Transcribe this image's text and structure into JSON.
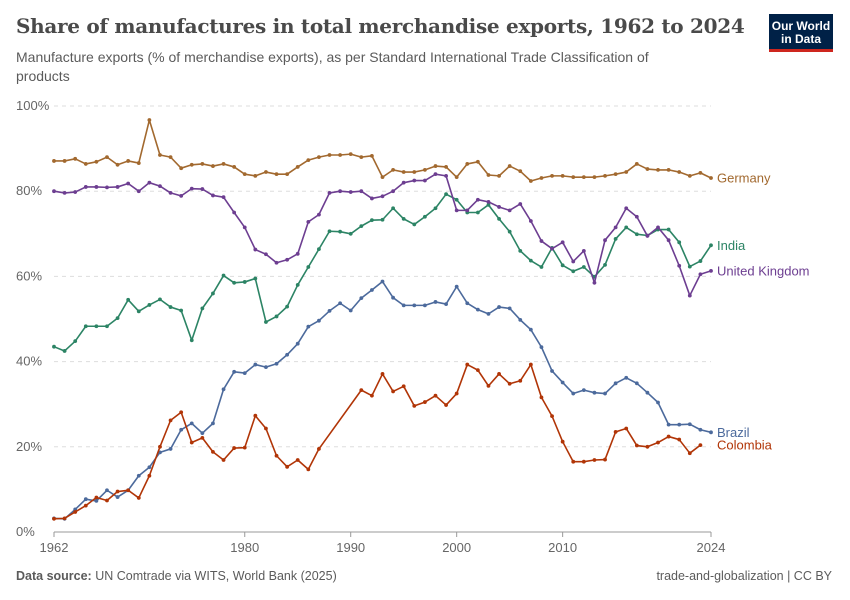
{
  "header": {
    "title": "Share of manufactures in total merchandise exports, 1962 to 2024",
    "subtitle": "Manufacture exports (% of merchandise exports), as per Standard International Trade Classification of products",
    "logo_line1": "Our World",
    "logo_line2": "in Data"
  },
  "footer": {
    "source_label": "Data source:",
    "source": "UN Comtrade via WITS, World Bank (2025)",
    "right": "trade-and-globalization | CC BY"
  },
  "chart_data": {
    "type": "line",
    "title": "Share of manufactures in total merchandise exports, 1962 to 2024",
    "xlim": [
      1962,
      2024
    ],
    "ylim": [
      0,
      100
    ],
    "x_ticks": [
      "1962",
      "1980",
      "1990",
      "2000",
      "2010",
      "2024"
    ],
    "y_ticks": [
      "0%",
      "20%",
      "40%",
      "60%",
      "80%",
      "100%"
    ],
    "grid": "horizontal dashed",
    "legend": "inline labels at right end",
    "x_start": 1962,
    "series": [
      {
        "name": "Germany",
        "color": "#a2692f",
        "values": [
          87.1,
          87.1,
          87.6,
          86.4,
          86.9,
          88,
          86.2,
          87.1,
          86.6,
          96.7,
          88.5,
          88,
          85.4,
          86.2,
          86.4,
          85.9,
          86.4,
          85.7,
          84,
          83.6,
          84.5,
          84,
          84,
          85.7,
          87.3,
          88,
          88.5,
          88.5,
          88.7,
          88,
          88.3,
          83.3,
          85,
          84.5,
          84.5,
          85,
          85.9,
          85.7,
          83.3,
          86.4,
          86.9,
          83.8,
          83.6,
          85.9,
          84.7,
          82.4,
          83.1,
          83.6,
          83.6,
          83.3,
          83.3,
          83.3,
          83.6,
          84,
          84.5,
          86.4,
          85.2,
          85,
          85,
          84.5,
          83.6,
          84.3,
          83.1
        ]
      },
      {
        "name": "India",
        "color": "#2c8465",
        "values": [
          43.5,
          42.5,
          44.8,
          48.3,
          48.3,
          48.3,
          50.2,
          54.5,
          51.8,
          53.3,
          54.6,
          52.8,
          52,
          45,
          52.5,
          56,
          60.2,
          58.5,
          58.7,
          59.5,
          49.3,
          50.6,
          52.9,
          58,
          62.2,
          66.4,
          70.6,
          70.5,
          70,
          71.8,
          73.2,
          73.3,
          76,
          73.5,
          72.2,
          74,
          76,
          79.3,
          78,
          75,
          75,
          76.8,
          73.5,
          70.5,
          66,
          63.7,
          62.2,
          66.7,
          62.6,
          61.2,
          62.2,
          59.9,
          62.7,
          68.8,
          71.5,
          69.9,
          69.6,
          71,
          71,
          68,
          62.3,
          63.6,
          67.3
        ]
      },
      {
        "name": "United Kingdom",
        "color": "#6d3e91",
        "values": [
          80,
          79.6,
          79.8,
          81,
          81,
          80.9,
          81,
          81.8,
          80,
          82,
          81.2,
          79.6,
          78.9,
          80.6,
          80.5,
          79,
          78.6,
          75,
          71.5,
          66.3,
          65.2,
          63.2,
          63.9,
          65.3,
          72.8,
          74.5,
          79.6,
          80,
          79.8,
          80,
          78.3,
          78.8,
          80,
          82,
          82.5,
          82.5,
          84,
          83.6,
          75.5,
          75.5,
          78,
          77.5,
          76.3,
          75.5,
          77,
          73,
          68.3,
          66.5,
          68,
          63.5,
          66,
          58.5,
          68.5,
          71.5,
          76,
          74,
          69.5,
          71.5,
          68.5,
          62.5,
          55.5,
          60.5,
          61.3
        ]
      },
      {
        "name": "Brazil",
        "color": "#4c6a9c",
        "values": [
          3.2,
          3.1,
          5.3,
          7.7,
          7.3,
          9.8,
          8.2,
          9.8,
          13.2,
          15.2,
          18.7,
          19.5,
          24,
          25.5,
          23.2,
          25.5,
          33.5,
          37.6,
          37.3,
          39.3,
          38.7,
          39.5,
          41.6,
          44.2,
          48.2,
          49.6,
          51.9,
          53.7,
          52,
          54.9,
          56.8,
          58.8,
          55,
          53.2,
          53.2,
          53.2,
          54,
          53.5,
          57.6,
          53.7,
          52.2,
          51.2,
          52.8,
          52.5,
          49.8,
          47.5,
          43.4,
          37.8,
          35.1,
          32.5,
          33.3,
          32.7,
          32.5,
          34.9,
          36.2,
          34.9,
          32.7,
          30.4,
          25.2,
          25.2,
          25.3,
          24,
          23.4
        ]
      },
      {
        "name": "Colombia",
        "color": "#b13507",
        "values": [
          3.1,
          3.2,
          4.7,
          6.2,
          8.1,
          7.4,
          9.5,
          9.8,
          8,
          13.2,
          20,
          26.2,
          28.1,
          21,
          22.1,
          18.8,
          16.9,
          19.7,
          19.8,
          27.3,
          24.3,
          17.9,
          15.3,
          16.9,
          14.7,
          19.5,
          null,
          null,
          null,
          33.3,
          32,
          37.1,
          33,
          34.2,
          29.6,
          30.5,
          32,
          29.8,
          32.5,
          39.3,
          38,
          34.3,
          37.1,
          34.8,
          35.5,
          39.3,
          31.6,
          27.2,
          21.2,
          16.5,
          16.5,
          16.9,
          17,
          23.5,
          24.3,
          20.3,
          20,
          21,
          22.4,
          21.7,
          18.5,
          20.4,
          null
        ]
      }
    ]
  }
}
